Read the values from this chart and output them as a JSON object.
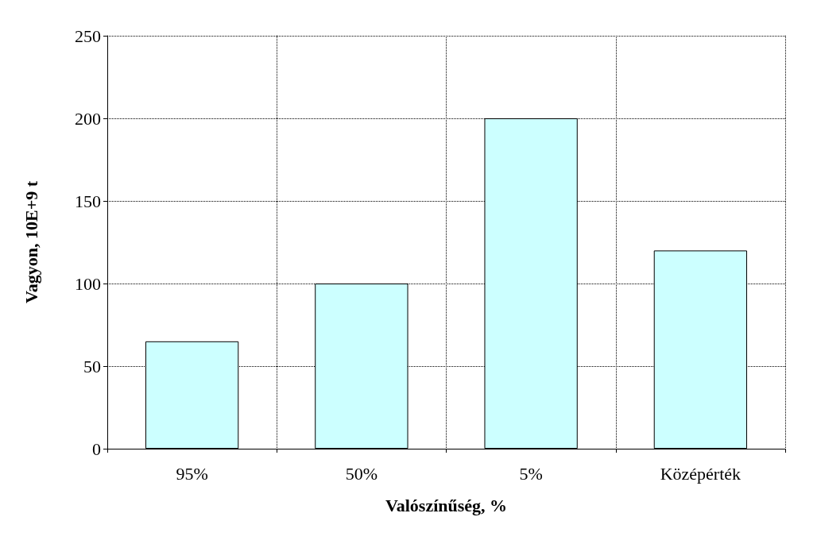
{
  "chart_data": {
    "type": "bar",
    "xlabel": "Valószínűség, %",
    "ylabel": "Vagyon, 10E+9 t",
    "categories": [
      "95%",
      "50%",
      "5%",
      "Középérték"
    ],
    "values": [
      65,
      100,
      200,
      120
    ],
    "color": "#ccffff",
    "ylim": [
      0,
      250
    ],
    "yticks": [
      0,
      50,
      100,
      150,
      200,
      250
    ],
    "grid": true,
    "line_style": "dotted"
  }
}
